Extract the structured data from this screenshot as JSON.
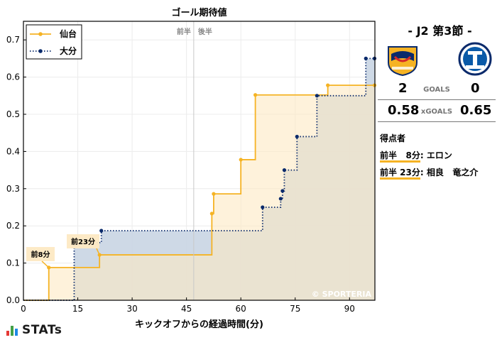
{
  "chart_data": {
    "type": "line",
    "step": "post",
    "title": "ゴール期待値",
    "xlabel": "キックオフからの経過時間(分)",
    "ylabel": "",
    "xlim": [
      0,
      97
    ],
    "ylim": [
      0,
      0.75
    ],
    "xticks": [
      0,
      15,
      30,
      45,
      60,
      75,
      90
    ],
    "yticks": [
      0.0,
      0.1,
      0.2,
      0.3,
      0.4,
      0.5,
      0.6,
      0.7
    ],
    "grid": true,
    "legend_position": "top-left",
    "halftime_marker": {
      "x": 47,
      "label_left": "前半",
      "label_right": "後半"
    },
    "series": [
      {
        "name": "仙台",
        "color": "#f5b324",
        "fill": "#fde9c3",
        "line_style": "solid",
        "x": [
          0,
          7,
          21,
          52,
          52.5,
          60,
          64,
          84,
          97
        ],
        "y": [
          0,
          0.088,
          0.122,
          0.233,
          0.286,
          0.378,
          0.552,
          0.578,
          0.578
        ]
      },
      {
        "name": "大分",
        "color": "#0a2a6b",
        "fill": "#c9d5e3",
        "line_style": "dotted",
        "x": [
          0,
          14,
          21.5,
          66,
          71,
          71.5,
          72,
          75.5,
          81,
          94.5,
          97
        ],
        "y": [
          0,
          0.155,
          0.187,
          0.25,
          0.273,
          0.294,
          0.35,
          0.44,
          0.55,
          0.65,
          0.65
        ]
      }
    ],
    "annotations": [
      {
        "text": "前8分",
        "x": 7,
        "y": 0.088,
        "series": "仙台"
      },
      {
        "text": "前23分",
        "x": 21,
        "y": 0.122,
        "series": "仙台"
      }
    ],
    "watermark": "© SPORTERIA"
  },
  "match": {
    "title": "- J2 第3節 -",
    "home_crest": "vegalta-sendai-crest",
    "away_crest": "oita-trinita-crest",
    "goals_label": "GOALS",
    "home_goals": "2",
    "away_goals": "0",
    "xgoals_label": "xGOALS",
    "home_xg": "0.58",
    "away_xg": "0.65"
  },
  "scorers": {
    "title": "得点者",
    "items": [
      {
        "time": "前半   8分",
        "name": ": エロン"
      },
      {
        "time": "前半 23分",
        "name": ": 相良   竜之介"
      }
    ]
  },
  "branding": {
    "name": "STATs",
    "bar_colors": [
      "#e53935",
      "#43a047",
      "#1e88e5"
    ]
  }
}
